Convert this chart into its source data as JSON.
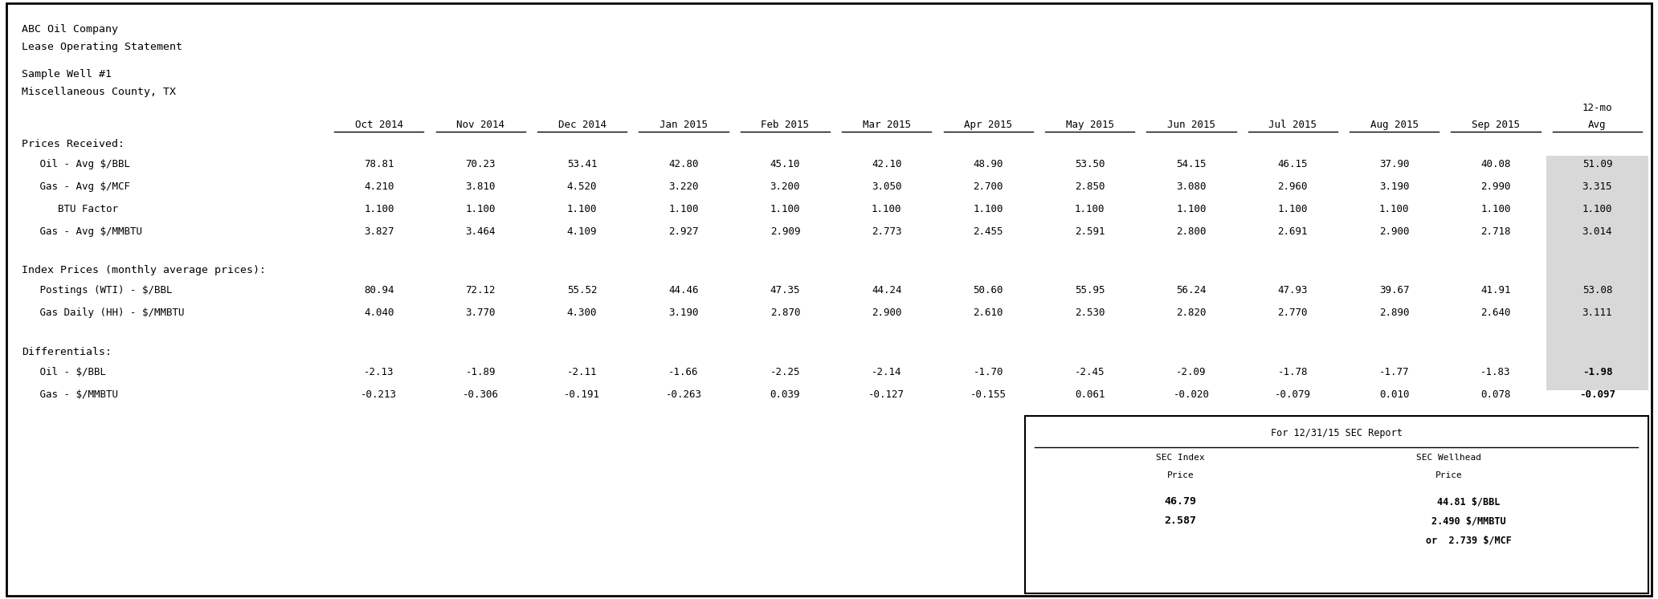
{
  "title_lines": [
    "ABC Oil Company",
    "Lease Operating Statement"
  ],
  "subtitle_lines": [
    "Sample Well #1",
    "Miscellaneous County, TX"
  ],
  "columns": [
    "Oct 2014",
    "Nov 2014",
    "Dec 2014",
    "Jan 2015",
    "Feb 2015",
    "Mar 2015",
    "Apr 2015",
    "May 2015",
    "Jun 2015",
    "Jul 2015",
    "Aug 2015",
    "Sep 2015",
    "12-mo\nAvg"
  ],
  "sections": [
    {
      "header": "Prices Received:",
      "rows": [
        {
          "label": "   Oil - Avg $/BBL",
          "values": [
            "78.81",
            "70.23",
            "53.41",
            "42.80",
            "45.10",
            "42.10",
            "48.90",
            "53.50",
            "54.15",
            "46.15",
            "37.90",
            "40.08",
            "51.09"
          ],
          "bold_last": false
        },
        {
          "label": "   Gas - Avg $/MCF",
          "values": [
            "4.210",
            "3.810",
            "4.520",
            "3.220",
            "3.200",
            "3.050",
            "2.700",
            "2.850",
            "3.080",
            "2.960",
            "3.190",
            "2.990",
            "3.315"
          ],
          "bold_last": false
        },
        {
          "label": "      BTU Factor",
          "values": [
            "1.100",
            "1.100",
            "1.100",
            "1.100",
            "1.100",
            "1.100",
            "1.100",
            "1.100",
            "1.100",
            "1.100",
            "1.100",
            "1.100",
            "1.100"
          ],
          "bold_last": false
        },
        {
          "label": "   Gas - Avg $/MMBTU",
          "values": [
            "3.827",
            "3.464",
            "4.109",
            "2.927",
            "2.909",
            "2.773",
            "2.455",
            "2.591",
            "2.800",
            "2.691",
            "2.900",
            "2.718",
            "3.014"
          ],
          "bold_last": false
        }
      ]
    },
    {
      "header": "Index Prices (monthly average prices):",
      "rows": [
        {
          "label": "   Postings (WTI) - $/BBL",
          "values": [
            "80.94",
            "72.12",
            "55.52",
            "44.46",
            "47.35",
            "44.24",
            "50.60",
            "55.95",
            "56.24",
            "47.93",
            "39.67",
            "41.91",
            "53.08"
          ],
          "bold_last": false
        },
        {
          "label": "   Gas Daily (HH) - $/MMBTU",
          "values": [
            "4.040",
            "3.770",
            "4.300",
            "3.190",
            "2.870",
            "2.900",
            "2.610",
            "2.530",
            "2.820",
            "2.770",
            "2.890",
            "2.640",
            "3.111"
          ],
          "bold_last": false
        }
      ]
    },
    {
      "header": "Differentials:",
      "rows": [
        {
          "label": "   Oil - $/BBL",
          "values": [
            "-2.13",
            "-1.89",
            "-2.11",
            "-1.66",
            "-2.25",
            "-2.14",
            "-1.70",
            "-2.45",
            "-2.09",
            "-1.78",
            "-1.77",
            "-1.83",
            "-1.98"
          ],
          "bold_last": true
        },
        {
          "label": "   Gas - $/MMBTU",
          "values": [
            "-0.213",
            "-0.306",
            "-0.191",
            "-0.263",
            "0.039",
            "-0.127",
            "-0.155",
            "0.061",
            "-0.020",
            "-0.079",
            "0.010",
            "0.078",
            "-0.097"
          ],
          "bold_last": true
        }
      ]
    }
  ],
  "sec_box": {
    "header": "For 12/31/15 SEC Report",
    "col1_header": "SEC Index",
    "col2_header": "SEC Wellhead",
    "subheader1": "Price",
    "subheader2": "Price",
    "data_rows": [
      {
        "col1": "46.79",
        "col2": "44.81 $/BBL",
        "bold": true
      },
      {
        "col1": "2.587",
        "col2": "2.490 $/MMBTU",
        "bold": true
      },
      {
        "col1": "",
        "col2": "or  2.739 $/MCF",
        "bold": true
      }
    ]
  },
  "bg_color": "#ffffff",
  "border_color": "#000000",
  "text_color": "#000000",
  "last_col_bg": "#d8d8d8"
}
